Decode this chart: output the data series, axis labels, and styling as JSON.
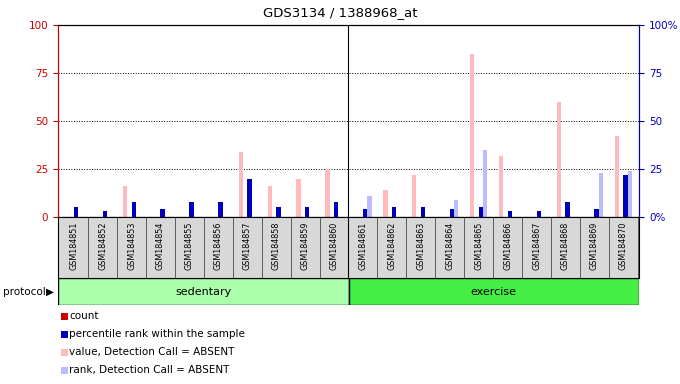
{
  "title": "GDS3134 / 1388968_at",
  "samples": [
    "GSM184851",
    "GSM184852",
    "GSM184853",
    "GSM184854",
    "GSM184855",
    "GSM184856",
    "GSM184857",
    "GSM184858",
    "GSM184859",
    "GSM184860",
    "GSM184861",
    "GSM184862",
    "GSM184863",
    "GSM184864",
    "GSM184865",
    "GSM184866",
    "GSM184867",
    "GSM184868",
    "GSM184869",
    "GSM184870"
  ],
  "count_values": [
    0,
    0,
    0,
    0,
    0,
    0,
    0,
    0,
    0,
    0,
    0,
    0,
    0,
    0,
    0,
    0,
    0,
    0,
    0,
    0
  ],
  "rank_values": [
    5,
    3,
    8,
    4,
    8,
    8,
    20,
    5,
    5,
    8,
    4,
    5,
    5,
    4,
    5,
    3,
    3,
    8,
    4,
    22
  ],
  "absent_value_values": [
    0,
    0,
    16,
    0,
    0,
    0,
    34,
    16,
    20,
    25,
    0,
    14,
    22,
    0,
    85,
    32,
    0,
    60,
    0,
    42
  ],
  "absent_rank_values": [
    0,
    0,
    0,
    0,
    0,
    0,
    0,
    0,
    0,
    0,
    11,
    0,
    0,
    9,
    35,
    0,
    0,
    0,
    23,
    24
  ],
  "n_sedentary": 10,
  "n_exercise": 10,
  "sedentary_label": "sedentary",
  "exercise_label": "exercise",
  "protocol_label": "protocol",
  "ylim": [
    0,
    100
  ],
  "yticks": [
    0,
    25,
    50,
    75,
    100
  ],
  "ytick_labels_left": [
    "0",
    "25",
    "50",
    "75",
    "100"
  ],
  "ytick_labels_right": [
    "0%",
    "25",
    "50",
    "75",
    "100%"
  ],
  "color_count": "#cc0000",
  "color_rank": "#0000bb",
  "color_absent_value": "#ffbbbb",
  "color_absent_rank": "#bbbbff",
  "bar_width": 0.15,
  "legend_items": [
    {
      "label": "count",
      "color": "#cc0000"
    },
    {
      "label": "percentile rank within the sample",
      "color": "#0000bb"
    },
    {
      "label": "value, Detection Call = ABSENT",
      "color": "#ffbbbb"
    },
    {
      "label": "rank, Detection Call = ABSENT",
      "color": "#bbbbff"
    }
  ],
  "color_sedentary": "#aaffaa",
  "color_exercise": "#44ee44",
  "background_figure": "#ffffff",
  "axis_color_left": "#cc0000",
  "axis_color_right": "#0000bb"
}
